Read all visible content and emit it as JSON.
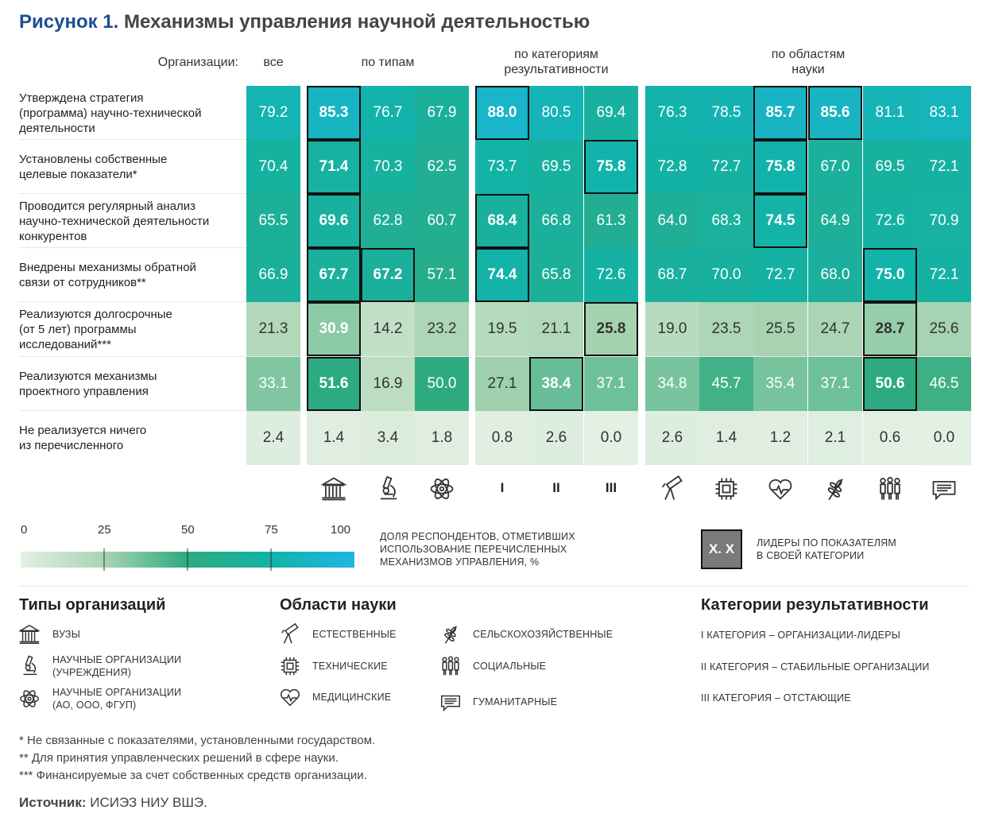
{
  "figure": {
    "label": "Рисунок 1.",
    "title": "Механизмы управления научной деятельностью"
  },
  "chart_data": {
    "type": "heatmap",
    "header_label": "Организации:",
    "group_headers": [
      "все",
      "по типам",
      "по категориям\nрезультативности",
      "по областям\nнауки"
    ],
    "row_labels": [
      "Утверждена стратегия\n(программа) научно-технической\nдеятельности",
      "Установлены собственные\nцелевые показатели*",
      "Проводится регулярный анализ\nнаучно-технической деятельности\nконкурентов",
      "Внедрены механизмы обратной\nсвязи от сотрудников**",
      "Реализуются долгосрочные\n(от 5 лет) программы\nисследований***",
      "Реализуются механизмы\nпроектного управления",
      "Не реализуется ничего\nиз перечисленного"
    ],
    "values": [
      [
        "79.2",
        "85.3",
        "76.7",
        "67.9",
        "88.0",
        "80.5",
        "69.4",
        "76.3",
        "78.5",
        "85.7",
        "85.6",
        "81.1",
        "83.1"
      ],
      [
        "70.4",
        "71.4",
        "70.3",
        "62.5",
        "73.7",
        "69.5",
        "75.8",
        "72.8",
        "72.7",
        "75.8",
        "67.0",
        "69.5",
        "72.1"
      ],
      [
        "65.5",
        "69.6",
        "62.8",
        "60.7",
        "68.4",
        "66.8",
        "61.3",
        "64.0",
        "68.3",
        "74.5",
        "64.9",
        "72.6",
        "70.9"
      ],
      [
        "66.9",
        "67.7",
        "67.2",
        "57.1",
        "74.4",
        "65.8",
        "72.6",
        "68.7",
        "70.0",
        "72.7",
        "68.0",
        "75.0",
        "72.1"
      ],
      [
        "21.3",
        "30.9",
        "14.2",
        "23.2",
        "19.5",
        "21.1",
        "25.8",
        "19.0",
        "23.5",
        "25.5",
        "24.7",
        "28.7",
        "25.6"
      ],
      [
        "33.1",
        "51.6",
        "16.9",
        "50.0",
        "27.1",
        "38.4",
        "37.1",
        "34.8",
        "45.7",
        "35.4",
        "37.1",
        "50.6",
        "46.5"
      ],
      [
        "2.4",
        "1.4",
        "3.4",
        "1.8",
        "0.8",
        "2.6",
        "0.0",
        "2.6",
        "1.4",
        "1.2",
        "2.1",
        "0.6",
        "0.0"
      ]
    ],
    "leaders": [
      [
        false,
        true,
        false,
        false,
        true,
        false,
        false,
        false,
        false,
        true,
        true,
        false,
        false
      ],
      [
        false,
        true,
        false,
        false,
        false,
        false,
        true,
        false,
        false,
        true,
        false,
        false,
        false
      ],
      [
        false,
        true,
        false,
        false,
        true,
        false,
        false,
        false,
        false,
        true,
        false,
        false,
        false
      ],
      [
        false,
        true,
        true,
        false,
        true,
        false,
        false,
        false,
        false,
        false,
        false,
        true,
        false
      ],
      [
        false,
        true,
        false,
        false,
        false,
        false,
        true,
        false,
        false,
        false,
        false,
        true,
        false
      ],
      [
        false,
        true,
        false,
        false,
        false,
        true,
        false,
        false,
        false,
        false,
        false,
        true,
        false
      ],
      [
        false,
        false,
        false,
        false,
        false,
        false,
        false,
        false,
        false,
        false,
        false,
        false,
        false
      ]
    ],
    "column_icons": [
      "university-icon",
      "microscope-icon",
      "atom-icon",
      "roman-1",
      "roman-2",
      "roman-3",
      "telescope-icon",
      "chip-icon",
      "heart-pulse-icon",
      "wheat-icon",
      "people-icon",
      "speech-icon"
    ],
    "roman_labels": [
      "I",
      "II",
      "III"
    ],
    "colorscale": {
      "min": 0,
      "max": 100,
      "ticks": [
        "0",
        "25",
        "50",
        "75",
        "100"
      ],
      "colors": [
        "#e3f0e4",
        "#a9d4b2",
        "#2eaa7f",
        "#12b3a8",
        "#1fb6e6"
      ]
    },
    "scale_caption": "ДОЛЯ РЕСПОНДЕНТОВ, ОТМЕТИВШИХ\nИСПОЛЬЗОВАНИЕ ПЕРЕЧИСЛЕННЫХ\nМЕХАНИЗМОВ УПРАВЛЕНИЯ, %",
    "leader_key": {
      "sample": "X. X",
      "text": "ЛИДЕРЫ ПО ПОКАЗАТЕЛЯМ\nВ СВОЕЙ КАТЕГОРИИ"
    }
  },
  "legend": {
    "types": {
      "title": "Типы организаций",
      "items": [
        {
          "icon": "university-icon",
          "label": "ВУЗЫ"
        },
        {
          "icon": "microscope-icon",
          "label": "НАУЧНЫЕ ОРГАНИЗАЦИИ\n(УЧРЕЖДЕНИЯ)"
        },
        {
          "icon": "atom-icon",
          "label": "НАУЧНЫЕ ОРГАНИЗАЦИИ\n(АО, ООО, ФГУП)"
        }
      ]
    },
    "fields": {
      "title": "Области науки",
      "items": [
        {
          "icon": "telescope-icon",
          "label": "ЕСТЕСТВЕННЫЕ"
        },
        {
          "icon": "chip-icon",
          "label": "ТЕХНИЧЕСКИЕ"
        },
        {
          "icon": "heart-pulse-icon",
          "label": "МЕДИЦИНСКИЕ"
        },
        {
          "icon": "wheat-icon",
          "label": "СЕЛЬСКОХОЗЯЙСТВЕННЫЕ"
        },
        {
          "icon": "people-icon",
          "label": "СОЦИАЛЬНЫЕ"
        },
        {
          "icon": "speech-icon",
          "label": "ГУМАНИТАРНЫЕ"
        }
      ]
    },
    "categories": {
      "title": "Категории результативности",
      "items": [
        "I КАТЕГОРИЯ – ОРГАНИЗАЦИИ-ЛИДЕРЫ",
        "II КАТЕГОРИЯ – СТАБИЛЬНЫЕ ОРГАНИЗАЦИИ",
        "III КАТЕГОРИЯ – ОТСТАЮЩИЕ"
      ]
    }
  },
  "footnotes": [
    "* Не связанные с показателями, установленными государством.",
    "** Для принятия управленческих решений в сфере науки.",
    "*** Финансируемые за счет собственных средств организации."
  ],
  "source": {
    "label": "Источник:",
    "text": "ИСИЭЗ НИУ ВШЭ."
  }
}
